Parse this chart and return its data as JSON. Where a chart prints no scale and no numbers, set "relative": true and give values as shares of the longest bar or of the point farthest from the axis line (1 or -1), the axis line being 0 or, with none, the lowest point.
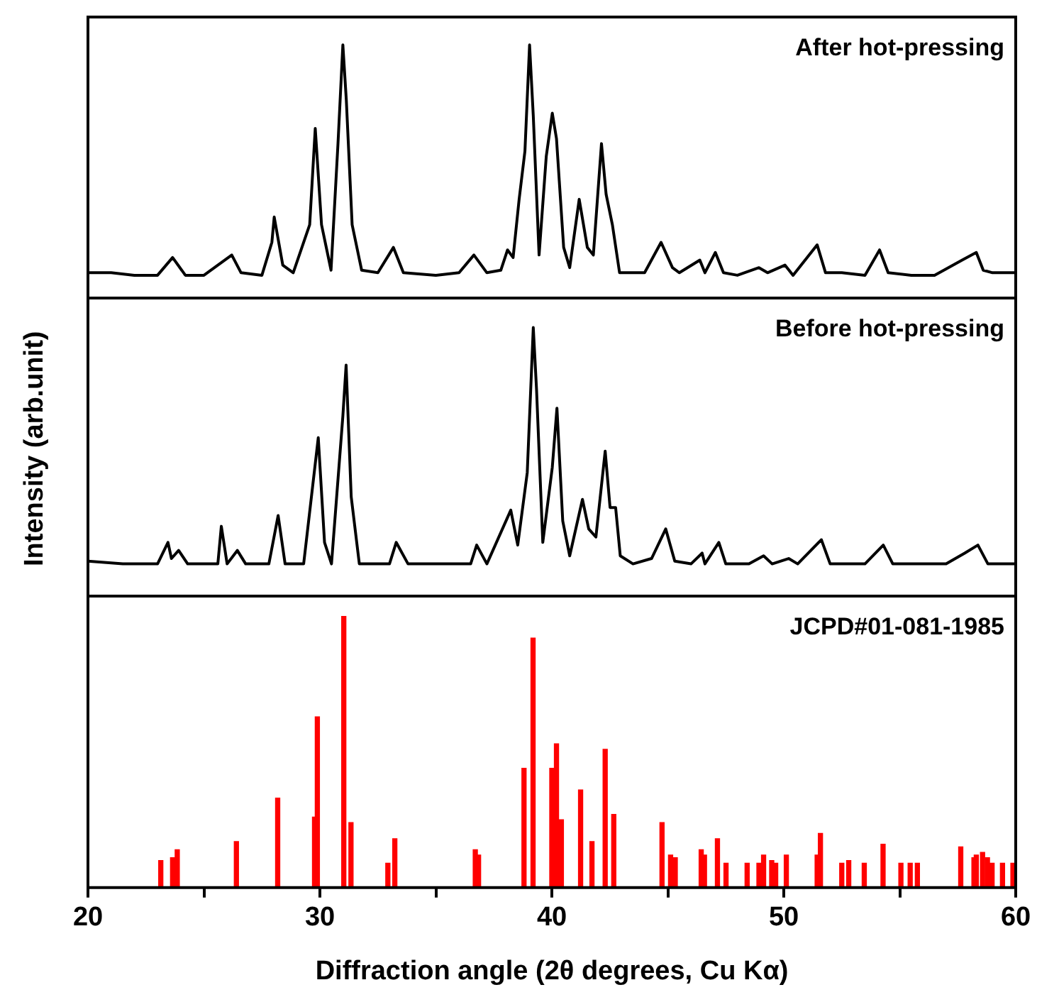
{
  "chart_data": [
    {
      "type": "line",
      "relative": true,
      "color": "#000000",
      "xlim": [
        20,
        60
      ],
      "tick_labels": false,
      "annotations": [
        "After hot-pressing"
      ],
      "x": [
        20.0,
        21.0,
        22.0,
        23.0,
        23.65,
        24.2,
        25.0,
        26.2,
        26.6,
        27.5,
        27.93,
        28.03,
        28.4,
        28.85,
        29.56,
        29.8,
        30.07,
        30.48,
        30.78,
        30.99,
        31.14,
        31.39,
        31.8,
        32.5,
        33.17,
        33.6,
        35.0,
        36.0,
        36.64,
        37.2,
        37.8,
        38.09,
        38.33,
        38.59,
        38.84,
        39.04,
        39.2,
        39.45,
        39.76,
        40.02,
        40.2,
        40.51,
        40.77,
        41.18,
        41.53,
        41.79,
        42.14,
        42.34,
        42.61,
        42.92,
        44.0,
        44.71,
        45.2,
        45.5,
        46.38,
        46.6,
        47.05,
        47.4,
        48.0,
        48.93,
        49.3,
        50.05,
        50.4,
        51.44,
        51.8,
        52.5,
        53.5,
        54.13,
        54.5,
        55.5,
        56.5,
        57.69,
        58.3,
        58.6,
        59.0,
        60.0
      ],
      "values": [
        0.1,
        0.1,
        0.09,
        0.09,
        0.16,
        0.09,
        0.09,
        0.17,
        0.1,
        0.09,
        0.22,
        0.32,
        0.13,
        0.1,
        0.29,
        0.67,
        0.29,
        0.11,
        0.61,
        1.0,
        0.78,
        0.29,
        0.11,
        0.1,
        0.2,
        0.1,
        0.09,
        0.1,
        0.17,
        0.1,
        0.11,
        0.19,
        0.16,
        0.39,
        0.58,
        1.0,
        0.72,
        0.17,
        0.56,
        0.73,
        0.63,
        0.2,
        0.12,
        0.39,
        0.2,
        0.17,
        0.61,
        0.41,
        0.29,
        0.1,
        0.1,
        0.22,
        0.12,
        0.1,
        0.15,
        0.1,
        0.18,
        0.1,
        0.09,
        0.12,
        0.1,
        0.13,
        0.09,
        0.21,
        0.1,
        0.1,
        0.09,
        0.19,
        0.1,
        0.09,
        0.09,
        0.15,
        0.18,
        0.11,
        0.1,
        0.1
      ]
    },
    {
      "type": "line",
      "relative": true,
      "color": "#000000",
      "xlim": [
        20,
        60
      ],
      "tick_labels": false,
      "ylabel": "Intensity (arb.unit)",
      "annotations": [
        "Before hot-pressing"
      ],
      "x": [
        20.0,
        21.5,
        23.0,
        23.45,
        23.6,
        23.91,
        24.3,
        25.6,
        25.75,
        26.0,
        26.44,
        26.8,
        27.8,
        28.2,
        28.5,
        29.3,
        29.93,
        30.2,
        30.5,
        30.99,
        31.13,
        31.35,
        31.7,
        33.0,
        33.29,
        33.8,
        36.5,
        36.76,
        37.2,
        38.23,
        38.53,
        38.94,
        39.2,
        39.34,
        39.61,
        40.02,
        40.22,
        40.47,
        40.77,
        41.32,
        41.59,
        41.9,
        42.3,
        42.51,
        42.75,
        42.95,
        43.5,
        44.3,
        44.91,
        45.3,
        46.0,
        46.48,
        46.6,
        47.2,
        47.5,
        48.5,
        49.13,
        49.5,
        50.21,
        50.6,
        51.62,
        52.0,
        53.5,
        54.29,
        54.7,
        56.0,
        57.0,
        57.8,
        58.37,
        58.8,
        60.0
      ],
      "values": [
        0.13,
        0.12,
        0.12,
        0.2,
        0.14,
        0.17,
        0.12,
        0.12,
        0.26,
        0.12,
        0.17,
        0.12,
        0.12,
        0.3,
        0.12,
        0.12,
        0.59,
        0.2,
        0.12,
        0.67,
        0.86,
        0.37,
        0.12,
        0.12,
        0.2,
        0.12,
        0.12,
        0.19,
        0.12,
        0.32,
        0.19,
        0.46,
        1.0,
        0.77,
        0.2,
        0.48,
        0.7,
        0.28,
        0.15,
        0.36,
        0.25,
        0.22,
        0.54,
        0.33,
        0.33,
        0.15,
        0.12,
        0.14,
        0.25,
        0.13,
        0.12,
        0.16,
        0.12,
        0.2,
        0.12,
        0.12,
        0.15,
        0.12,
        0.14,
        0.12,
        0.21,
        0.12,
        0.12,
        0.19,
        0.12,
        0.12,
        0.12,
        0.16,
        0.19,
        0.12,
        0.12
      ]
    },
    {
      "type": "bar",
      "relative": true,
      "color": "#ff0000",
      "xlim": [
        20,
        60
      ],
      "xticks": [
        20,
        {
          "value": 25,
          "label": null
        },
        30,
        {
          "value": 35,
          "label": null
        },
        40,
        {
          "value": 45,
          "label": null
        },
        50,
        {
          "value": 55,
          "label": null
        },
        60
      ],
      "xlabel": "Diffraction angle (2θ degrees, Cu Kα)",
      "annotations": [
        "JCPD#01-081-1985"
      ],
      "x": [
        23.14,
        23.65,
        23.85,
        26.4,
        28.18,
        29.77,
        29.89,
        31.03,
        31.34,
        32.93,
        33.23,
        36.7,
        36.84,
        38.8,
        39.19,
        40.0,
        40.2,
        40.41,
        41.24,
        41.73,
        42.3,
        42.67,
        44.75,
        45.12,
        45.32,
        46.44,
        46.58,
        47.14,
        47.51,
        48.42,
        48.93,
        49.13,
        49.48,
        49.65,
        50.11,
        51.44,
        51.58,
        52.5,
        52.8,
        53.47,
        54.28,
        55.05,
        55.45,
        55.76,
        57.63,
        58.2,
        58.3,
        58.57,
        58.78,
        58.98,
        59.43,
        59.88
      ],
      "values": [
        0.1,
        0.11,
        0.14,
        0.17,
        0.33,
        0.26,
        0.63,
        1.0,
        0.24,
        0.09,
        0.18,
        0.14,
        0.12,
        0.44,
        0.92,
        0.44,
        0.53,
        0.25,
        0.36,
        0.17,
        0.51,
        0.27,
        0.24,
        0.12,
        0.11,
        0.14,
        0.12,
        0.18,
        0.09,
        0.09,
        0.09,
        0.12,
        0.1,
        0.09,
        0.12,
        0.12,
        0.2,
        0.09,
        0.1,
        0.09,
        0.16,
        0.09,
        0.09,
        0.09,
        0.15,
        0.11,
        0.12,
        0.13,
        0.11,
        0.09,
        0.09,
        0.09
      ]
    }
  ]
}
